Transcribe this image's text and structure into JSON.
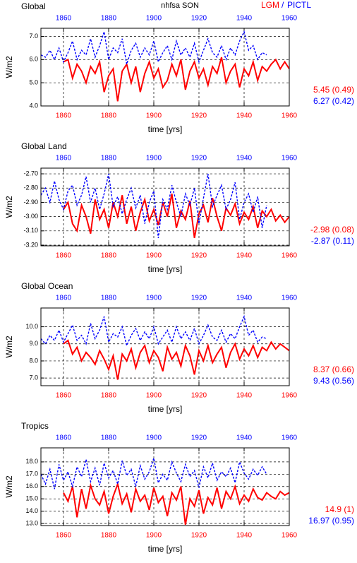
{
  "header": {
    "title": "nhfsa SON",
    "separator": "/"
  },
  "chart_data": [
    {
      "type": "line",
      "title": "Global",
      "xlabel": "time [yrs]",
      "ylabel": "W/m2",
      "xlim": [
        1850,
        1960
      ],
      "xticks": [
        1860,
        1880,
        1900,
        1920,
        1940,
        1960
      ],
      "ylim": [
        4.0,
        7.35
      ],
      "yticks": [
        {
          "value": 4,
          "label": "4.0"
        },
        {
          "value": 5,
          "label": "5.0"
        },
        {
          "value": 6,
          "label": "6.0"
        },
        {
          "value": 7,
          "label": "7.0"
        }
      ],
      "grid": true,
      "x": [
        1850,
        1852,
        1854,
        1856,
        1858,
        1860,
        1862,
        1864,
        1866,
        1868,
        1870,
        1872,
        1874,
        1876,
        1878,
        1880,
        1882,
        1884,
        1886,
        1888,
        1890,
        1892,
        1894,
        1896,
        1898,
        1900,
        1902,
        1904,
        1906,
        1908,
        1910,
        1912,
        1914,
        1916,
        1918,
        1920,
        1922,
        1924,
        1926,
        1928,
        1930,
        1932,
        1934,
        1936,
        1938,
        1940,
        1942,
        1944,
        1946,
        1948,
        1950,
        1952,
        1954,
        1956,
        1958,
        1960
      ],
      "series": [
        {
          "name": "LGM",
          "color": "#ff0000",
          "stats": "5.45 (0.49)",
          "values": [
            null,
            null,
            null,
            null,
            null,
            5.9,
            6.0,
            5.2,
            5.8,
            5.5,
            5.0,
            5.7,
            5.4,
            5.9,
            4.6,
            5.3,
            5.6,
            4.2,
            5.5,
            5.8,
            5.0,
            5.7,
            4.6,
            5.4,
            5.9,
            5.2,
            5.6,
            4.8,
            5.1,
            5.8,
            5.3,
            6.0,
            4.7,
            5.5,
            5.9,
            5.2,
            5.6,
            4.9,
            5.7,
            5.4,
            6.1,
            5.0,
            5.5,
            5.8,
            4.8,
            5.6,
            5.3,
            5.9,
            5.1,
            5.7,
            5.5,
            5.8,
            6.0,
            5.6,
            5.9,
            5.6
          ]
        },
        {
          "name": "PICTL",
          "color": "#0000ff",
          "stats": "6.27 (0.42)",
          "values": [
            6.2,
            6.1,
            6.4,
            6.0,
            6.5,
            5.9,
            6.3,
            6.8,
            6.0,
            6.4,
            6.2,
            6.9,
            6.1,
            6.6,
            7.2,
            6.0,
            6.5,
            6.3,
            6.9,
            5.8,
            6.4,
            6.7,
            6.1,
            6.5,
            6.2,
            6.8,
            5.9,
            6.3,
            6.6,
            6.0,
            6.8,
            6.2,
            6.5,
            6.1,
            6.7,
            5.9,
            6.4,
            6.9,
            6.3,
            6.1,
            6.6,
            6.0,
            6.5,
            6.2,
            6.8,
            7.2,
            6.4,
            6.6,
            6.0,
            6.3,
            6.2,
            null,
            null,
            null,
            null,
            null
          ]
        }
      ]
    },
    {
      "type": "line",
      "title": "Global Land",
      "xlabel": "time [yrs]",
      "ylabel": "W/m2",
      "xlim": [
        1850,
        1960
      ],
      "xticks": [
        1860,
        1880,
        1900,
        1920,
        1940,
        1960
      ],
      "ylim": [
        -3.205,
        -2.66
      ],
      "yticks": [
        {
          "value": -3.2,
          "label": "-3.20"
        },
        {
          "value": -3.1,
          "label": "-3.10"
        },
        {
          "value": -3.0,
          "label": "-3.00"
        },
        {
          "value": -2.9,
          "label": "-2.90"
        },
        {
          "value": -2.8,
          "label": "-2.80"
        },
        {
          "value": -2.7,
          "label": "-2.70"
        }
      ],
      "grid": true,
      "x": [
        1850,
        1852,
        1854,
        1856,
        1858,
        1860,
        1862,
        1864,
        1866,
        1868,
        1870,
        1872,
        1874,
        1876,
        1878,
        1880,
        1882,
        1884,
        1886,
        1888,
        1890,
        1892,
        1894,
        1896,
        1898,
        1900,
        1902,
        1904,
        1906,
        1908,
        1910,
        1912,
        1914,
        1916,
        1918,
        1920,
        1922,
        1924,
        1926,
        1928,
        1930,
        1932,
        1934,
        1936,
        1938,
        1940,
        1942,
        1944,
        1946,
        1948,
        1950,
        1952,
        1954,
        1956,
        1958,
        1960
      ],
      "series": [
        {
          "name": "LGM",
          "color": "#ff0000",
          "stats": "-2.98 (0.08)",
          "values": [
            null,
            null,
            null,
            null,
            null,
            -2.95,
            -2.9,
            -3.05,
            -3.1,
            -2.92,
            -3.0,
            -3.12,
            -2.88,
            -3.02,
            -2.95,
            -3.08,
            -2.9,
            -3.0,
            -2.85,
            -3.05,
            -2.93,
            -3.1,
            -2.97,
            -2.88,
            -3.03,
            -2.95,
            -3.06,
            -2.9,
            -3.0,
            -2.84,
            -3.08,
            -2.96,
            -3.02,
            -2.89,
            -3.15,
            -2.98,
            -2.92,
            -3.04,
            -2.87,
            -3.0,
            -3.1,
            -2.94,
            -2.99,
            -2.91,
            -3.05,
            -2.97,
            -3.02,
            -2.93,
            -3.08,
            -2.96,
            -3.0,
            -2.95,
            -3.03,
            -2.99,
            -3.04,
            -3.0
          ]
        },
        {
          "name": "PICTL",
          "color": "#0000ff",
          "stats": "-2.87 (0.11)",
          "values": [
            -2.85,
            -2.8,
            -2.9,
            -2.75,
            -2.88,
            -2.95,
            -2.82,
            -2.78,
            -2.92,
            -2.85,
            -2.72,
            -2.9,
            -2.8,
            -2.95,
            -2.84,
            -2.7,
            -2.93,
            -2.86,
            -2.98,
            -2.88,
            -2.8,
            -2.94,
            -2.85,
            -3.05,
            -2.9,
            -2.82,
            -3.15,
            -2.88,
            -2.95,
            -2.78,
            -2.9,
            -3.0,
            -2.84,
            -2.92,
            -2.8,
            -3.05,
            -2.87,
            -2.7,
            -2.93,
            -2.85,
            -2.78,
            -2.95,
            -2.88,
            -2.76,
            -3.02,
            -2.9,
            -2.84,
            -2.97,
            -2.86,
            -3.08,
            -2.92,
            null,
            null,
            null,
            null,
            null
          ]
        }
      ]
    },
    {
      "type": "line",
      "title": "Global Ocean",
      "xlabel": "time [yrs]",
      "ylabel": "W/m2",
      "xlim": [
        1850,
        1960
      ],
      "xticks": [
        1860,
        1880,
        1900,
        1920,
        1940,
        1960
      ],
      "ylim": [
        6.55,
        11.1
      ],
      "yticks": [
        {
          "value": 7,
          "label": "7.0"
        },
        {
          "value": 8,
          "label": "8.0"
        },
        {
          "value": 9,
          "label": "9.0"
        },
        {
          "value": 10,
          "label": "10.0"
        }
      ],
      "grid": true,
      "x": [
        1850,
        1852,
        1854,
        1856,
        1858,
        1860,
        1862,
        1864,
        1866,
        1868,
        1870,
        1872,
        1874,
        1876,
        1878,
        1880,
        1882,
        1884,
        1886,
        1888,
        1890,
        1892,
        1894,
        1896,
        1898,
        1900,
        1902,
        1904,
        1906,
        1908,
        1910,
        1912,
        1914,
        1916,
        1918,
        1920,
        1922,
        1924,
        1926,
        1928,
        1930,
        1932,
        1934,
        1936,
        1938,
        1940,
        1942,
        1944,
        1946,
        1948,
        1950,
        1952,
        1954,
        1956,
        1958,
        1960
      ],
      "series": [
        {
          "name": "LGM",
          "color": "#ff0000",
          "stats": "8.37 (0.66)",
          "values": [
            null,
            null,
            null,
            null,
            null,
            9.0,
            9.2,
            8.4,
            8.8,
            8.0,
            8.5,
            8.2,
            7.8,
            8.6,
            8.1,
            7.5,
            8.3,
            6.9,
            8.4,
            8.0,
            8.7,
            7.6,
            8.5,
            8.9,
            7.9,
            8.6,
            8.2,
            7.4,
            8.8,
            8.1,
            8.5,
            7.7,
            8.9,
            8.3,
            7.2,
            8.6,
            8.0,
            8.9,
            7.9,
            8.4,
            8.8,
            7.6,
            8.5,
            9.0,
            8.1,
            8.7,
            8.3,
            8.9,
            8.2,
            8.8,
            8.6,
            9.1,
            8.7,
            9.0,
            8.8,
            8.6
          ]
        },
        {
          "name": "PICTL",
          "color": "#0000ff",
          "stats": "9.43 (0.56)",
          "values": [
            9.3,
            9.0,
            9.5,
            9.2,
            9.8,
            9.1,
            9.6,
            10.1,
            9.2,
            9.5,
            9.0,
            10.2,
            9.3,
            9.8,
            10.6,
            9.1,
            9.6,
            9.4,
            10.0,
            8.9,
            9.5,
            9.9,
            9.2,
            9.7,
            9.3,
            10.0,
            9.0,
            9.4,
            9.8,
            9.1,
            10.0,
            9.3,
            9.7,
            9.2,
            9.9,
            9.0,
            9.5,
            10.1,
            9.4,
            9.2,
            9.8,
            9.1,
            9.6,
            9.3,
            10.0,
            10.6,
            9.5,
            9.8,
            9.1,
            9.4,
            9.3,
            null,
            null,
            null,
            null,
            null
          ]
        }
      ]
    },
    {
      "type": "line",
      "title": "Tropics",
      "xlabel": "time [yrs]",
      "ylabel": "W/m2",
      "xlim": [
        1850,
        1960
      ],
      "xticks": [
        1860,
        1880,
        1900,
        1920,
        1940,
        1960
      ],
      "ylim": [
        12.83,
        19.14
      ],
      "yticks": [
        {
          "value": 13,
          "label": "13.0"
        },
        {
          "value": 14,
          "label": "14.0"
        },
        {
          "value": 15,
          "label": "15.0"
        },
        {
          "value": 16,
          "label": "16.0"
        },
        {
          "value": 17,
          "label": "17.0"
        },
        {
          "value": 18,
          "label": "18.0"
        }
      ],
      "grid": true,
      "x": [
        1850,
        1852,
        1854,
        1856,
        1858,
        1860,
        1862,
        1864,
        1866,
        1868,
        1870,
        1872,
        1874,
        1876,
        1878,
        1880,
        1882,
        1884,
        1886,
        1888,
        1890,
        1892,
        1894,
        1896,
        1898,
        1900,
        1902,
        1904,
        1906,
        1908,
        1910,
        1912,
        1914,
        1916,
        1918,
        1920,
        1922,
        1924,
        1926,
        1928,
        1930,
        1932,
        1934,
        1936,
        1938,
        1940,
        1942,
        1944,
        1946,
        1948,
        1950,
        1952,
        1954,
        1956,
        1958,
        1960
      ],
      "series": [
        {
          "name": "LGM",
          "color": "#ff0000",
          "stats": "14.9 (1)",
          "values": [
            null,
            null,
            null,
            null,
            null,
            15.5,
            14.8,
            16.0,
            13.5,
            15.8,
            14.2,
            16.1,
            15.0,
            14.5,
            15.6,
            13.8,
            15.2,
            16.2,
            14.6,
            15.4,
            13.9,
            15.8,
            14.8,
            15.3,
            14.1,
            15.9,
            14.7,
            15.2,
            13.6,
            15.5,
            14.9,
            16.0,
            12.9,
            15.0,
            14.4,
            15.7,
            13.8,
            15.1,
            14.5,
            15.9,
            14.2,
            15.6,
            15.0,
            16.0,
            14.6,
            15.3,
            14.8,
            15.8,
            15.1,
            14.9,
            15.5,
            15.2,
            15.0,
            15.6,
            15.3,
            15.5
          ]
        },
        {
          "name": "PICTL",
          "color": "#0000ff",
          "stats": "16.97 (0.95)",
          "values": [
            17.0,
            16.2,
            17.4,
            15.8,
            17.8,
            16.5,
            17.2,
            16.0,
            17.6,
            16.8,
            18.2,
            16.4,
            17.5,
            16.1,
            17.9,
            16.7,
            17.3,
            16.2,
            18.1,
            16.9,
            17.4,
            16.0,
            17.7,
            16.6,
            17.2,
            18.3,
            16.3,
            17.0,
            16.5,
            18.0,
            17.1,
            16.4,
            17.8,
            16.8,
            17.3,
            15.9,
            17.6,
            16.7,
            17.9,
            16.5,
            17.2,
            16.8,
            17.5,
            16.3,
            18.0,
            17.1,
            16.6,
            17.4,
            16.9,
            17.6,
            17.0,
            null,
            null,
            null,
            null,
            null
          ]
        }
      ]
    }
  ]
}
